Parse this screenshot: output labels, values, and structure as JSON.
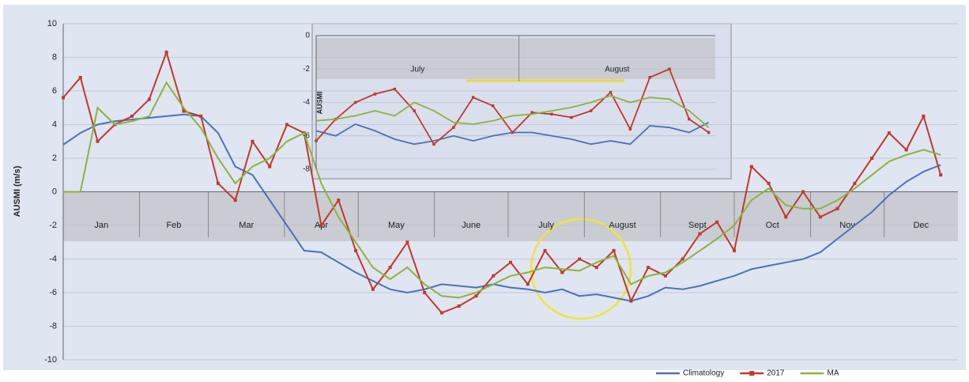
{
  "chart_data": [
    {
      "type": "line",
      "y_label": "AUSMI (m/s)",
      "ylim": [
        -10,
        10
      ],
      "yticks": [
        -10,
        -8,
        -6,
        -4,
        -2,
        0,
        2,
        4,
        6,
        8,
        10
      ],
      "xlim": [
        1,
        365
      ],
      "xticks": [
        {
          "value": 1,
          "label": "Jan"
        },
        {
          "value": 32,
          "label": "Feb"
        },
        {
          "value": 60,
          "label": "Mar"
        },
        {
          "value": 91,
          "label": "Apr"
        },
        {
          "value": 121,
          "label": "May"
        },
        {
          "value": 152,
          "label": "June"
        },
        {
          "value": 182,
          "label": "July"
        },
        {
          "value": 213,
          "label": "August"
        },
        {
          "value": 244,
          "label": "Sept"
        },
        {
          "value": 274,
          "label": "Oct"
        },
        {
          "value": 305,
          "label": "Nov"
        },
        {
          "value": 335,
          "label": "Dec"
        }
      ],
      "x": [
        1,
        8,
        15,
        22,
        29,
        36,
        43,
        50,
        57,
        64,
        71,
        78,
        85,
        92,
        99,
        106,
        113,
        120,
        127,
        134,
        141,
        148,
        155,
        162,
        169,
        176,
        183,
        190,
        197,
        204,
        211,
        218,
        225,
        232,
        239,
        246,
        253,
        260,
        267,
        274,
        281,
        288,
        295,
        302,
        309,
        316,
        323,
        330,
        337,
        344,
        351,
        358
      ],
      "series": [
        {
          "name": "Climatology",
          "color": "#4a72b8",
          "values": [
            2.8,
            3.5,
            4,
            4.2,
            4.3,
            4.4,
            4.5,
            4.6,
            4.5,
            3.5,
            1.5,
            1,
            -0.5,
            -2,
            -3.5,
            -3.6,
            -4.2,
            -4.8,
            -5.3,
            -5.8,
            -6,
            -5.8,
            -5.5,
            -5.6,
            -5.7,
            -5.5,
            -5.7,
            -5.8,
            -6,
            -5.8,
            -6.2,
            -6.1,
            -6.3,
            -6.5,
            -6.2,
            -5.7,
            -5.8,
            -5.6,
            -5.3,
            -5,
            -4.6,
            -4.4,
            -4.2,
            -4,
            -3.6,
            -2.8,
            -2,
            -1.2,
            -0.2,
            0.6,
            1.2,
            1.6
          ]
        },
        {
          "name": "2017",
          "color": "#c0392b",
          "markers": true,
          "values": [
            5.6,
            6.8,
            3,
            4,
            4.5,
            5.5,
            8.3,
            4.8,
            4.5,
            0.5,
            -0.5,
            3,
            1.5,
            4,
            3.5,
            -2,
            -0.5,
            -3.5,
            -5.8,
            -4.5,
            -3,
            -6,
            -7.2,
            -6.8,
            -6.2,
            -5,
            -4.2,
            -5.5,
            -3.5,
            -4.8,
            -4,
            -4.5,
            -3.5,
            -6.5,
            -4.5,
            -5,
            -4,
            -2.5,
            -1.8,
            -3.5,
            1.5,
            0.5,
            -1.5,
            0,
            -1.5,
            -1,
            0.5,
            2,
            3.5,
            2.5,
            4.5,
            1
          ]
        },
        {
          "name": "MA",
          "color": "#8cb43c",
          "values": [
            0,
            0,
            5,
            4,
            4.2,
            4.5,
            6.5,
            5,
            3.8,
            2,
            0.5,
            1.5,
            2,
            3,
            3.5,
            0.5,
            -1.5,
            -3,
            -4.5,
            -5.2,
            -4.5,
            -5.5,
            -6.2,
            -6.3,
            -6,
            -5.5,
            -5,
            -4.8,
            -4.5,
            -4.6,
            -4.7,
            -4.2,
            -3.8,
            -5.5,
            -5,
            -4.8,
            -4.2,
            -3.5,
            -2.8,
            -2,
            -0.5,
            0.2,
            -0.8,
            -1,
            -1,
            -0.5,
            0.2,
            1,
            1.8,
            2.2,
            2.5,
            2.2
          ]
        }
      ]
    },
    {
      "type": "line",
      "y_label": "AUSMI",
      "ylim": [
        -8,
        0
      ],
      "yticks": [
        -8,
        -6,
        -4,
        -2,
        0
      ],
      "xlim": [
        1,
        62
      ],
      "xticks": [
        {
          "value": 1,
          "label": "July"
        },
        {
          "value": 32,
          "label": "August"
        }
      ],
      "x": [
        1,
        4,
        7,
        10,
        13,
        16,
        19,
        22,
        25,
        28,
        31,
        34,
        37,
        40,
        43,
        46,
        49,
        52,
        55,
        58,
        61
      ],
      "series": [
        {
          "name": "Climatology",
          "color": "#4a72b8",
          "values": [
            -5.7,
            -6,
            -5.3,
            -5.7,
            -6.2,
            -6.5,
            -6.3,
            -6,
            -6.3,
            -6,
            -5.8,
            -5.8,
            -6,
            -6.2,
            -6.5,
            -6.3,
            -6.5,
            -5.4,
            -5.5,
            -5.8,
            -5.2
          ]
        },
        {
          "name": "2017",
          "color": "#c0392b",
          "markers": true,
          "values": [
            -6.3,
            -5,
            -4,
            -3.5,
            -3.2,
            -4.5,
            -6.5,
            -5.5,
            -3.7,
            -4.2,
            -5.8,
            -4.6,
            -4.7,
            -4.9,
            -4.5,
            -3.4,
            -5.6,
            -2.5,
            -2,
            -5,
            -5.8
          ]
        },
        {
          "name": "MA",
          "color": "#8cb43c",
          "values": [
            -5.1,
            -5,
            -4.8,
            -4.5,
            -4.8,
            -4,
            -4.5,
            -5.2,
            -5.3,
            -5.1,
            -4.8,
            -4.7,
            -4.5,
            -4.3,
            -4,
            -3.6,
            -4,
            -3.7,
            -3.8,
            -4.5,
            -5.5
          ]
        }
      ]
    }
  ]
}
